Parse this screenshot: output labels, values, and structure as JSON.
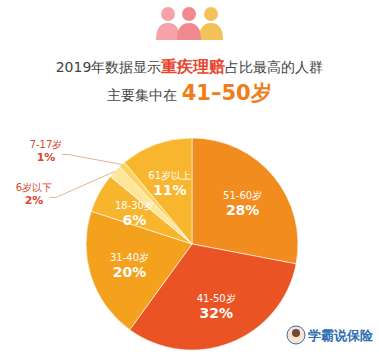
{
  "chart_data": {
    "type": "pie",
    "title": [
      "2019年数据显示",
      "重疾理赔",
      "占比最高的人群"
    ],
    "subtitle": [
      "主要集中在 ",
      "41–50岁"
    ],
    "categories": [
      "51-60岁",
      "41-50岁",
      "31-40岁",
      "18-30岁",
      "6岁以下",
      "7-17岁",
      "61岁以上"
    ],
    "values": [
      28,
      32,
      20,
      6,
      2,
      1,
      11
    ],
    "value_labels": [
      "28%",
      "32%",
      "20%",
      "6%",
      "2%",
      "1%",
      "11%"
    ],
    "colors": [
      "#f28c1f",
      "#ea5424",
      "#f4a11e",
      "#f7b52d",
      "#fde59a",
      "#fbd45e",
      "#f8b62f"
    ],
    "data_labels": true,
    "annotations": [
      "学霸说保险"
    ]
  }
}
